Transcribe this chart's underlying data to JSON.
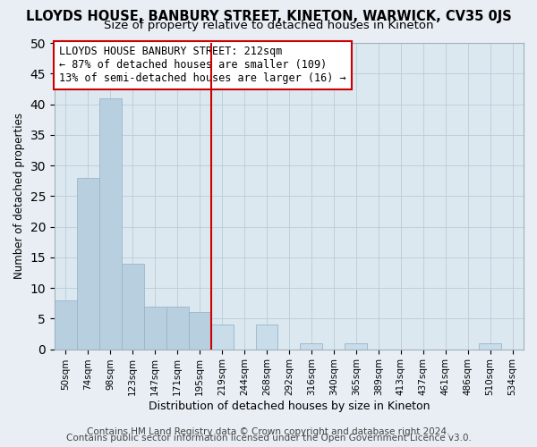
{
  "title": "LLOYDS HOUSE, BANBURY STREET, KINETON, WARWICK, CV35 0JS",
  "subtitle": "Size of property relative to detached houses in Kineton",
  "xlabel": "Distribution of detached houses by size in Kineton",
  "ylabel": "Number of detached properties",
  "bar_labels": [
    "50sqm",
    "74sqm",
    "98sqm",
    "123sqm",
    "147sqm",
    "171sqm",
    "195sqm",
    "219sqm",
    "244sqm",
    "268sqm",
    "292sqm",
    "316sqm",
    "340sqm",
    "365sqm",
    "389sqm",
    "413sqm",
    "437sqm",
    "461sqm",
    "486sqm",
    "510sqm",
    "534sqm"
  ],
  "bar_values": [
    8,
    28,
    41,
    14,
    7,
    7,
    6,
    4,
    0,
    4,
    0,
    1,
    0,
    1,
    0,
    0,
    0,
    0,
    0,
    1,
    0
  ],
  "bar_color_left": "#b8cfe0",
  "bar_color_right": "#c8dcea",
  "bar_edge_color": "#9ab5cc",
  "vline_index": 7,
  "vline_color": "#cc0000",
  "ylim": [
    0,
    50
  ],
  "yticks": [
    0,
    5,
    10,
    15,
    20,
    25,
    30,
    35,
    40,
    45,
    50
  ],
  "annotation_title": "LLOYDS HOUSE BANBURY STREET: 212sqm",
  "annotation_line1": "← 87% of detached houses are smaller (109)",
  "annotation_line2": "13% of semi-detached houses are larger (16) →",
  "footer1": "Contains HM Land Registry data © Crown copyright and database right 2024.",
  "footer2": "Contains public sector information licensed under the Open Government Licence v3.0.",
  "background_color": "#e8eef4",
  "plot_bg_color": "#dce8f0",
  "grid_color": "#b8ccd8",
  "title_fontsize": 10.5,
  "subtitle_fontsize": 9.5,
  "footer_fontsize": 7.5,
  "ann_fontsize": 8.5
}
